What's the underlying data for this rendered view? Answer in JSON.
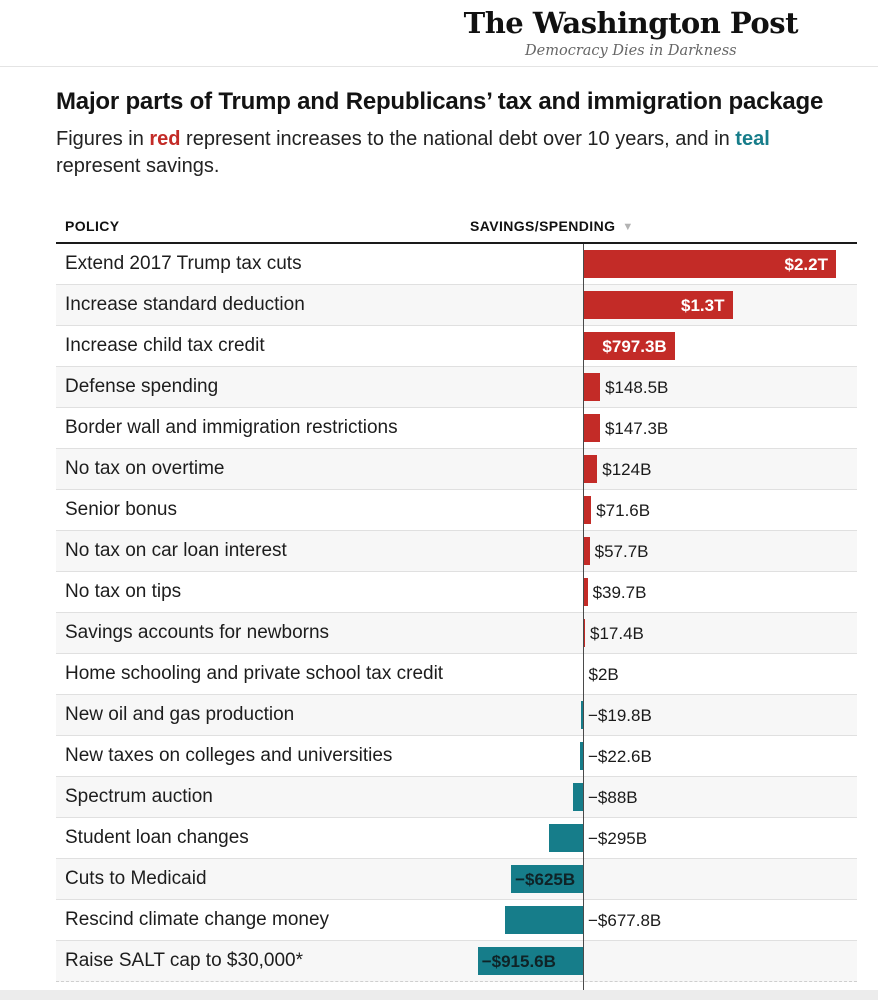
{
  "masthead": {
    "logo": "The Washington Post",
    "tagline": "Democracy Dies in Darkness"
  },
  "header": {
    "title": "Major parts of Trump and Republicans’ tax and immigration package",
    "subtitle": {
      "t1": "Figures in ",
      "red_word": "red",
      "t2": " represent increases to the national debt over 10 years, and in ",
      "teal_word": "teal",
      "t3": " represent savings."
    }
  },
  "table": {
    "policy_header": "POLICY",
    "value_header": "SAVINGS/SPENDING",
    "sort_icon": "▼"
  },
  "chart_data": {
    "type": "bar",
    "orientation": "horizontal",
    "value_unit": "billions of US dollars over 10 years",
    "positive_meaning": "increases to the national debt",
    "negative_meaning": "savings",
    "positive_color": "#c32b27",
    "negative_color": "#167d8a",
    "xlim_billions": [
      -1000,
      2400
    ],
    "grid": false,
    "legend": "none",
    "rows": [
      {
        "policy": "Extend 2017 Trump tax cuts",
        "value_billions": 2200,
        "value_label": "$2.2T",
        "label_inside": true
      },
      {
        "policy": "Increase standard deduction",
        "value_billions": 1300,
        "value_label": "$1.3T",
        "label_inside": true
      },
      {
        "policy": "Increase child tax credit",
        "value_billions": 797.3,
        "value_label": "$797.3B",
        "label_inside": true
      },
      {
        "policy": "Defense spending",
        "value_billions": 148.5,
        "value_label": "$148.5B",
        "label_inside": false
      },
      {
        "policy": "Border wall and immigration restrictions",
        "value_billions": 147.3,
        "value_label": "$147.3B",
        "label_inside": false
      },
      {
        "policy": "No tax on overtime",
        "value_billions": 124,
        "value_label": "$124B",
        "label_inside": false
      },
      {
        "policy": "Senior bonus",
        "value_billions": 71.6,
        "value_label": "$71.6B",
        "label_inside": false
      },
      {
        "policy": "No tax on car loan interest",
        "value_billions": 57.7,
        "value_label": "$57.7B",
        "label_inside": false
      },
      {
        "policy": "No tax on tips",
        "value_billions": 39.7,
        "value_label": "$39.7B",
        "label_inside": false
      },
      {
        "policy": "Savings accounts for newborns",
        "value_billions": 17.4,
        "value_label": "$17.4B",
        "label_inside": false
      },
      {
        "policy": "Home schooling and private school tax credit",
        "value_billions": 2,
        "value_label": "$2B",
        "label_inside": false
      },
      {
        "policy": "New oil and gas production",
        "value_billions": -19.8,
        "value_label": "−$19.8B",
        "label_inside": false
      },
      {
        "policy": "New taxes on colleges and universities",
        "value_billions": -22.6,
        "value_label": "−$22.6B",
        "label_inside": false
      },
      {
        "policy": "Spectrum auction",
        "value_billions": -88,
        "value_label": "−$88B",
        "label_inside": false
      },
      {
        "policy": "Student loan changes",
        "value_billions": -295,
        "value_label": "−$295B",
        "label_inside": false
      },
      {
        "policy": "Cuts to Medicaid",
        "value_billions": -625,
        "value_label": "−$625B",
        "label_inside": true
      },
      {
        "policy": "Rescind climate change money",
        "value_billions": -677.8,
        "value_label": "−$677.8B",
        "label_inside": false
      },
      {
        "policy": "Raise SALT cap to $30,000*",
        "value_billions": -915.6,
        "value_label": "−$915.6B",
        "label_inside": true
      }
    ]
  }
}
